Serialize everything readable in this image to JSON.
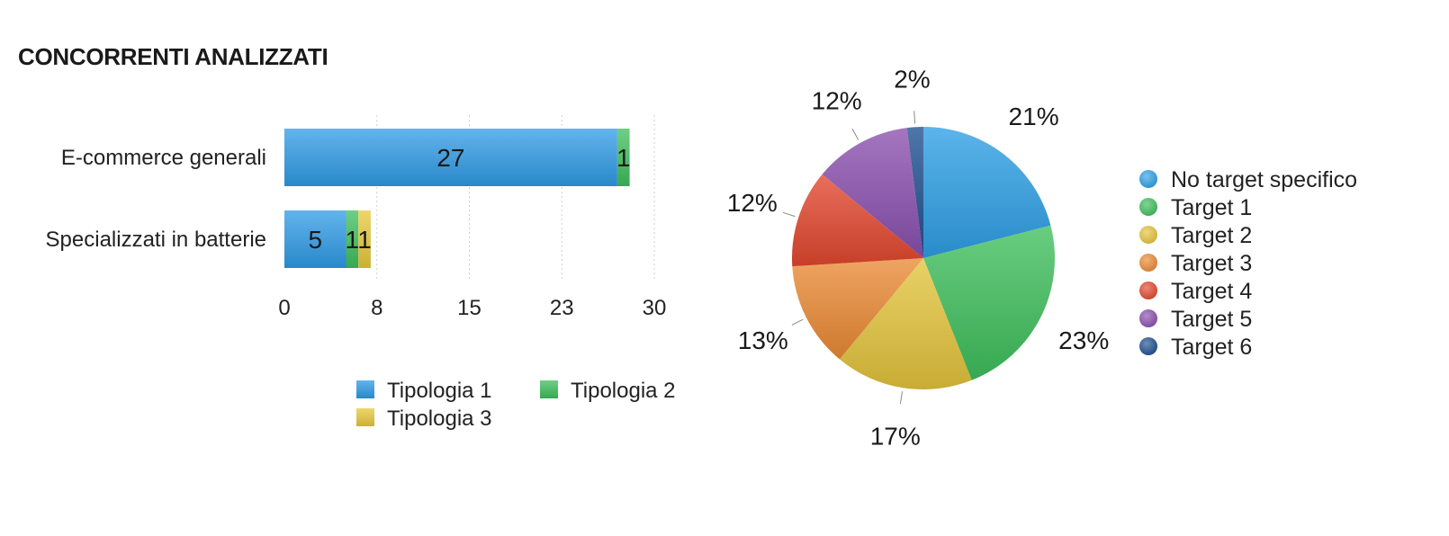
{
  "page": {
    "title": "CONCORRENTI ANALIZZATI"
  },
  "chart_data": [
    {
      "type": "bar",
      "orientation": "horizontal",
      "stacked": true,
      "categories": [
        "E-commerce generali",
        "Specializzati in batterie"
      ],
      "series": [
        {
          "name": "Tipologia 1",
          "values": [
            27,
            5
          ],
          "color": "#2f9be6"
        },
        {
          "name": "Tipologia 2",
          "values": [
            1,
            1
          ],
          "color": "#3fbf5c"
        },
        {
          "name": "Tipologia 3",
          "values": [
            0,
            1
          ],
          "color": "#e8c83c"
        }
      ],
      "data_labels": [
        [
          "27",
          "1",
          ""
        ],
        [
          "5",
          "1",
          "1"
        ]
      ],
      "xlim": [
        0,
        30
      ],
      "xticks": [
        "0",
        "8",
        "15",
        "23",
        "30"
      ],
      "grid": true,
      "legend_position": "bottom"
    },
    {
      "type": "pie",
      "labels": [
        "No target specifico",
        "Target 1",
        "Target 2",
        "Target 3",
        "Target 4",
        "Target 5",
        "Target 6"
      ],
      "values": [
        21,
        23,
        17,
        13,
        12,
        12,
        2
      ],
      "value_labels": [
        "21%",
        "23%",
        "17%",
        "13%",
        "12%",
        "12%",
        "2%"
      ],
      "colors": [
        "#2e9fe4",
        "#3fbf5c",
        "#e3c43c",
        "#ea8a34",
        "#e2462e",
        "#8a4fae",
        "#1f4f8f"
      ],
      "legend_position": "right"
    }
  ]
}
